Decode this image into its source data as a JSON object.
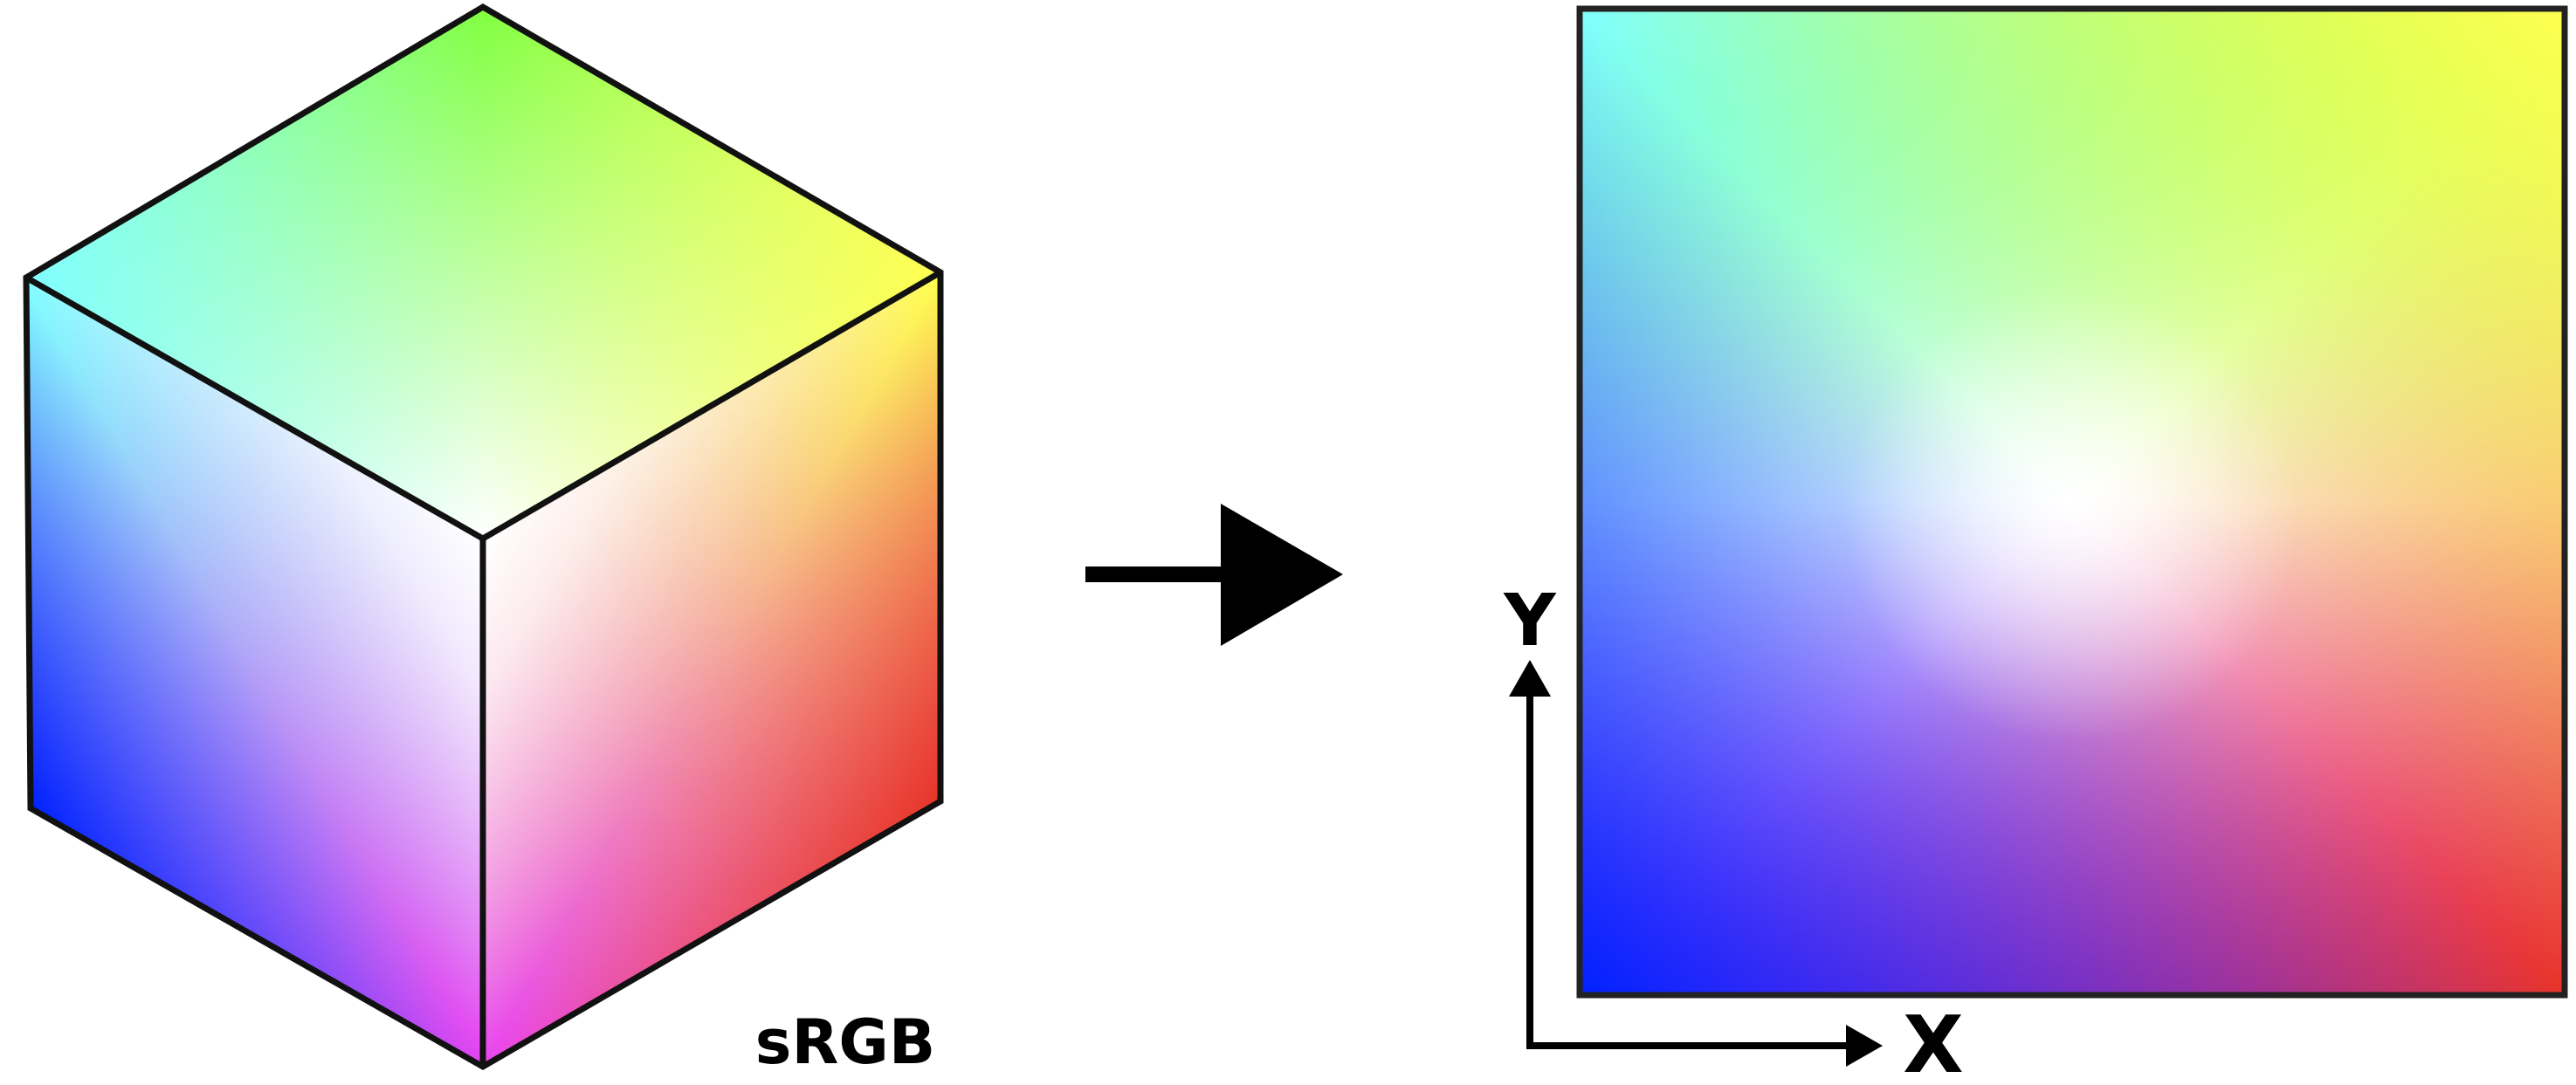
{
  "labels": {
    "cube_label": "sRGB",
    "axis_x": "X",
    "axis_y": "Y"
  },
  "colors": {
    "white": "#ffffff",
    "cyan": "#80ffff",
    "green": "#80ff40",
    "yellow": "#ffff50",
    "red": "#e83428",
    "magenta": "#e844f0",
    "blue": "#0022ff",
    "outline": "#111111"
  }
}
